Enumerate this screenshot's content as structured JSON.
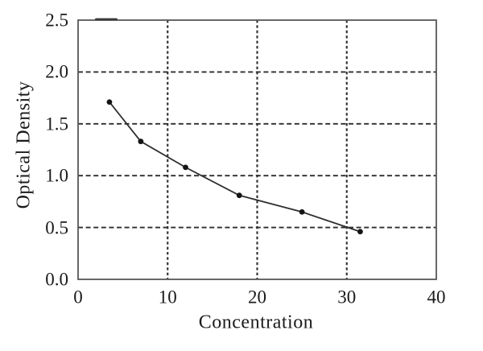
{
  "chart_data": {
    "type": "line",
    "title": "",
    "xlabel": "Concentration",
    "ylabel": "Optical Density",
    "x": [
      3.5,
      7,
      12,
      18,
      25,
      31.5
    ],
    "y": [
      1.71,
      1.33,
      1.08,
      0.81,
      0.65,
      0.46
    ],
    "xlim": [
      0,
      40
    ],
    "ylim": [
      0,
      2.5
    ],
    "xticks": [
      {
        "value": 0,
        "label": "0"
      },
      {
        "value": 10,
        "label": "10"
      },
      {
        "value": 20,
        "label": "20"
      },
      {
        "value": 30,
        "label": "30"
      },
      {
        "value": 40,
        "label": "40"
      }
    ],
    "yticks": [
      {
        "value": 0.0,
        "label": "0.0"
      },
      {
        "value": 0.5,
        "label": "0.5"
      },
      {
        "value": 1.0,
        "label": "1.0"
      },
      {
        "value": 1.5,
        "label": "1.5"
      },
      {
        "value": 2.0,
        "label": "2.0"
      },
      {
        "value": 2.5,
        "label": "2.5"
      }
    ],
    "grid_x": [
      10,
      20,
      30
    ],
    "grid_y": [
      0.5,
      1.0,
      1.5,
      2.0
    ],
    "grid_style": "dashed",
    "legend": "none",
    "marker": "filled-circle",
    "colors": {
      "line": "#2e2e2e",
      "marker": "#151515",
      "grid": "#2e2e2e",
      "frame": "#585858",
      "text": "#1b1b1b",
      "artifact": "#3a3a3a",
      "background": "#ffffff"
    }
  }
}
